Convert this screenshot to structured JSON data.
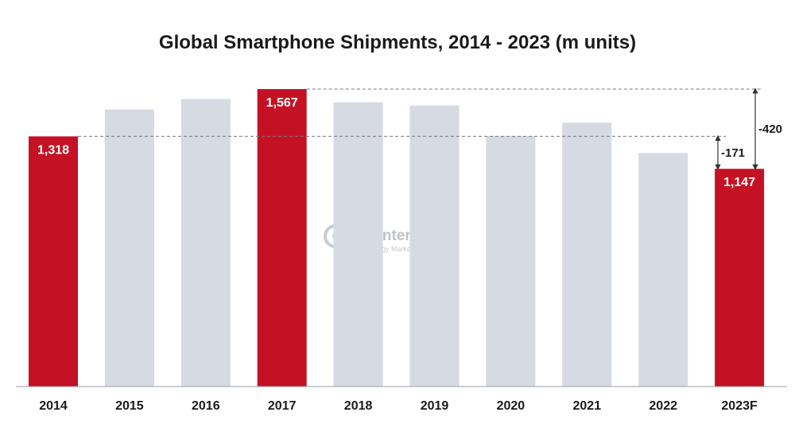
{
  "chart_data": {
    "type": "bar",
    "title": "Global Smartphone Shipments, 2014 - 2023 (m units)",
    "xlabel": "",
    "ylabel": "",
    "ylim": [
      0,
      1567
    ],
    "grid": false,
    "categories": [
      "2014",
      "2015",
      "2016",
      "2017",
      "2018",
      "2019",
      "2020",
      "2021",
      "2022",
      "2023F"
    ],
    "values": [
      1318,
      1460,
      1515,
      1567,
      1497,
      1480,
      1320,
      1390,
      1230,
      1147
    ],
    "highlighted": [
      true,
      false,
      false,
      true,
      false,
      false,
      false,
      false,
      false,
      true
    ],
    "data_labels": [
      "1,318",
      "",
      "",
      "1,567",
      "",
      "",
      "",
      "",
      "",
      "1,147"
    ],
    "annotations": [
      {
        "from_category": "2014",
        "to_category": "2023F",
        "label": "-171"
      },
      {
        "from_category": "2017",
        "to_category": "2023F",
        "label": "-420"
      }
    ]
  },
  "colors": {
    "highlight": "#c41224",
    "normal": "#d5dae3",
    "axis": "#9aa0a8",
    "guide": "#7a7a7a"
  },
  "watermark": {
    "brand": "Counterpoint",
    "tagline": "Technology Market Research",
    "logo_icon": "counterpoint-logo-icon"
  }
}
